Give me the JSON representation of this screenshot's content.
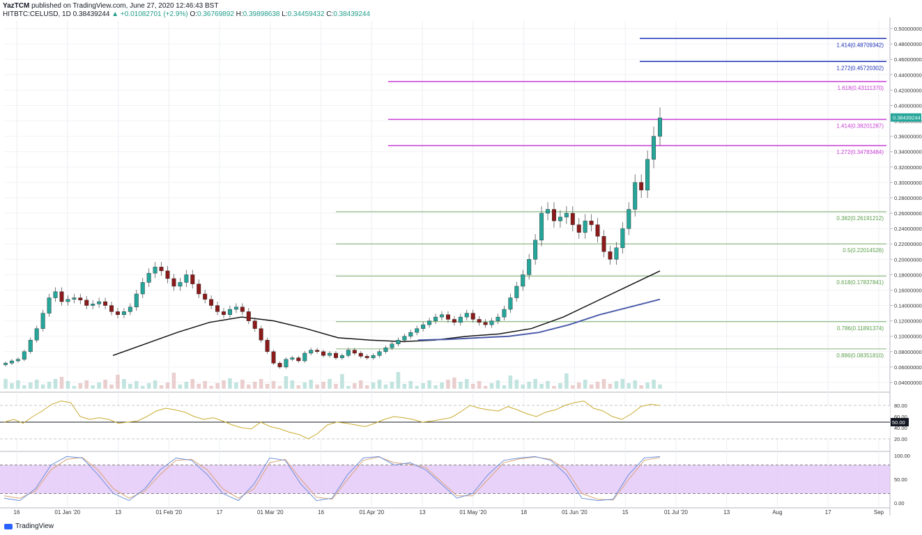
{
  "header": {
    "author": "YazTCM",
    "published": "published on TradingView.com, June 27, 2020 12:46:43 BST",
    "symbol": "HITBTC:CELUSD, 1D",
    "last": "0.38439244",
    "change": "+0.01082701 (+2.9%)",
    "open_label": "O:",
    "open": "0.36769892",
    "high_label": "H:",
    "high": "0.39898638",
    "low_label": "L:",
    "low": "0.34459432",
    "close_label": "C:",
    "close": "0.38439244"
  },
  "branding": {
    "logo_text": "TradingView"
  },
  "colors": {
    "up": "#26a69a",
    "down": "#8b1a1a",
    "wick": "#555555",
    "fib_retrace": "#5a9e4b",
    "fib_ext_magenta": "#c83dd6",
    "fib_ext_blue": "#1a2eb5",
    "ma_200": "#111111",
    "ma_blue": "#4a5aa8",
    "rsi": "#c8a92c",
    "stoch_k": "#6a8fd8",
    "stoch_d": "#d9a37a",
    "stoch_band": "#e3c7f7"
  },
  "chart_data": {
    "type": "candlestick",
    "price_axis": {
      "ylim": [
        0.03,
        0.51
      ],
      "ticks": [
        "0.50000000",
        "0.48000000",
        "0.46000000",
        "0.44000000",
        "0.42000000",
        "0.40000000",
        "0.38000000",
        "0.36000000",
        "0.34000000",
        "0.32000000",
        "0.30000000",
        "0.28000000",
        "0.26000000",
        "0.24000000",
        "0.22000000",
        "0.20000000",
        "0.18000000",
        "0.16000000",
        "0.14000000",
        "0.12000000",
        "0.10000000",
        "0.08000000",
        "0.06000000",
        "0.04000000"
      ],
      "last_price_label": "0.38439244"
    },
    "time_axis": {
      "labels": [
        "16",
        "01 Jan '20",
        "13",
        "01 Feb '20",
        "17",
        "01 Mar '20",
        "16",
        "01 Apr '20",
        "13",
        "01 May '20",
        "18",
        "01 Jun '20",
        "15",
        "01 Jul '20",
        "13",
        "Aug",
        "17",
        "Sep"
      ]
    },
    "fib_levels": [
      {
        "label": "1.414(0.48709342)",
        "value": 0.48709342,
        "group": "ext_blue"
      },
      {
        "label": "1.272(0.45720302)",
        "value": 0.45720302,
        "group": "ext_blue"
      },
      {
        "label": "1.618(0.43111370)",
        "value": 0.4311137,
        "group": "ext_magenta"
      },
      {
        "label": "1.414(0.38201287)",
        "value": 0.38201287,
        "group": "ext_magenta"
      },
      {
        "label": "1.272(0.34783484)",
        "value": 0.34783484,
        "group": "ext_magenta"
      },
      {
        "label": "0.382(0.26191212)",
        "value": 0.26191212,
        "group": "retrace"
      },
      {
        "label": "0.5(0.22014526)",
        "value": 0.22014526,
        "group": "retrace"
      },
      {
        "label": "0.618(0.17837841)",
        "value": 0.17837841,
        "group": "retrace"
      },
      {
        "label": "0.786(0.11891374)",
        "value": 0.11891374,
        "group": "retrace"
      },
      {
        "label": "0.886(0.08351810)",
        "value": 0.0835181,
        "group": "retrace"
      }
    ],
    "price_path": [
      0.065,
      0.068,
      0.07,
      0.08,
      0.095,
      0.11,
      0.13,
      0.15,
      0.158,
      0.145,
      0.148,
      0.15,
      0.147,
      0.14,
      0.142,
      0.145,
      0.14,
      0.132,
      0.128,
      0.132,
      0.138,
      0.155,
      0.17,
      0.182,
      0.19,
      0.185,
      0.175,
      0.165,
      0.17,
      0.18,
      0.168,
      0.155,
      0.148,
      0.14,
      0.132,
      0.128,
      0.135,
      0.138,
      0.132,
      0.12,
      0.11,
      0.095,
      0.08,
      0.065,
      0.06,
      0.07,
      0.072,
      0.068,
      0.078,
      0.082,
      0.08,
      0.075,
      0.078,
      0.072,
      0.075,
      0.082,
      0.078,
      0.074,
      0.072,
      0.075,
      0.08,
      0.085,
      0.09,
      0.095,
      0.1,
      0.105,
      0.11,
      0.115,
      0.12,
      0.125,
      0.128,
      0.122,
      0.118,
      0.125,
      0.13,
      0.122,
      0.118,
      0.115,
      0.12,
      0.125,
      0.135,
      0.15,
      0.165,
      0.18,
      0.2,
      0.225,
      0.26,
      0.265,
      0.25,
      0.255,
      0.26,
      0.245,
      0.235,
      0.25,
      0.245,
      0.23,
      0.21,
      0.2,
      0.215,
      0.24,
      0.265,
      0.3,
      0.29,
      0.33,
      0.36,
      0.384
    ],
    "ma_200": [
      0.075,
      0.09,
      0.105,
      0.118,
      0.125,
      0.12,
      0.11,
      0.098,
      0.095,
      0.093,
      0.095,
      0.1,
      0.103,
      0.11,
      0.125,
      0.145,
      0.165,
      0.185
    ],
    "ma_blue": [
      0.095,
      0.096,
      0.098,
      0.1,
      0.105,
      0.115,
      0.128,
      0.138,
      0.148
    ],
    "rsi": {
      "ticks": [
        "80.00",
        "60.00",
        "40.00",
        "20.00"
      ],
      "marker_label": "50.00",
      "values": [
        50,
        55,
        48,
        60,
        70,
        82,
        88,
        85,
        60,
        55,
        58,
        55,
        48,
        50,
        52,
        60,
        70,
        75,
        72,
        68,
        60,
        55,
        58,
        52,
        45,
        40,
        38,
        50,
        42,
        38,
        32,
        28,
        20,
        30,
        45,
        50,
        48,
        45,
        42,
        48,
        55,
        60,
        58,
        55,
        50,
        52,
        55,
        58,
        68,
        80,
        75,
        72,
        70,
        78,
        72,
        65,
        60,
        68,
        72,
        80,
        85,
        88,
        75,
        70,
        60,
        55,
        65,
        78,
        82,
        80
      ]
    },
    "stoch_rsi": {
      "ticks": [
        "100.00",
        "50.00",
        "0.00"
      ],
      "k": [
        10,
        5,
        30,
        80,
        98,
        95,
        60,
        20,
        5,
        30,
        70,
        95,
        90,
        60,
        20,
        5,
        40,
        95,
        90,
        40,
        5,
        10,
        60,
        95,
        98,
        80,
        85,
        70,
        40,
        10,
        20,
        60,
        90,
        95,
        98,
        90,
        60,
        10,
        5,
        8,
        60,
        95,
        98
      ],
      "d": [
        15,
        10,
        25,
        70,
        92,
        96,
        70,
        30,
        10,
        25,
        60,
        90,
        92,
        70,
        30,
        10,
        30,
        85,
        92,
        50,
        12,
        8,
        50,
        90,
        97,
        85,
        82,
        75,
        45,
        15,
        15,
        50,
        85,
        93,
        97,
        92,
        70,
        20,
        8,
        6,
        50,
        90,
        96
      ]
    }
  }
}
